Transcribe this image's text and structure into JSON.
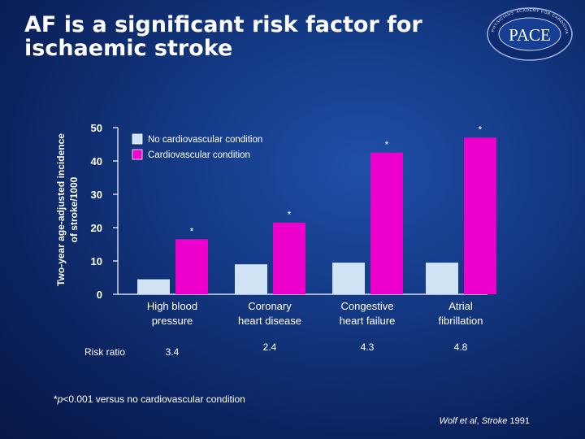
{
  "slide": {
    "title": "AF is a significant risk factor for ischaemic stroke",
    "logo_text": "PACE",
    "logo_arc_text": "PHYSICIANS' ACADEMY FOR CARDIOVASCULAR EDUCATION",
    "footnote_p": "p",
    "footnote_prefix": "*",
    "footnote_suffix": "<0.001 versus no cardiovascular condition",
    "citation_authors": "Wolf et al",
    "citation_journal": "Stroke",
    "citation_year": "1991"
  },
  "colors": {
    "series_none": "#cfe3f5",
    "series_cv": "#ee00cc"
  },
  "chart_data": {
    "type": "bar",
    "ylabel": "Two-year age-adjusted incidence of stroke/1000",
    "ylim": [
      0,
      50
    ],
    "yticks": [
      0,
      10,
      20,
      30,
      40,
      50
    ],
    "categories": [
      "High blood pressure",
      "Coronary heart disease",
      "Congestive heart failure",
      "Atrial fibrillation"
    ],
    "category_lines": [
      [
        "High blood",
        "pressure"
      ],
      [
        "Coronary",
        "heart disease"
      ],
      [
        "Congestive",
        "heart failure"
      ],
      [
        "Atrial",
        "fibrillation"
      ]
    ],
    "series": [
      {
        "name": "No cardiovascular condition",
        "values": [
          4.5,
          9,
          9.5,
          9.5
        ]
      },
      {
        "name": "Cardiovascular condition",
        "values": [
          16.5,
          21.5,
          42.5,
          47
        ],
        "annotations": [
          "*",
          "*",
          "*",
          "*"
        ]
      }
    ],
    "risk_ratio_label": "Risk ratio",
    "risk_ratios": [
      "3.4",
      "2.4",
      "4.3",
      "4.8"
    ],
    "legend": "top-left",
    "grid": false
  }
}
